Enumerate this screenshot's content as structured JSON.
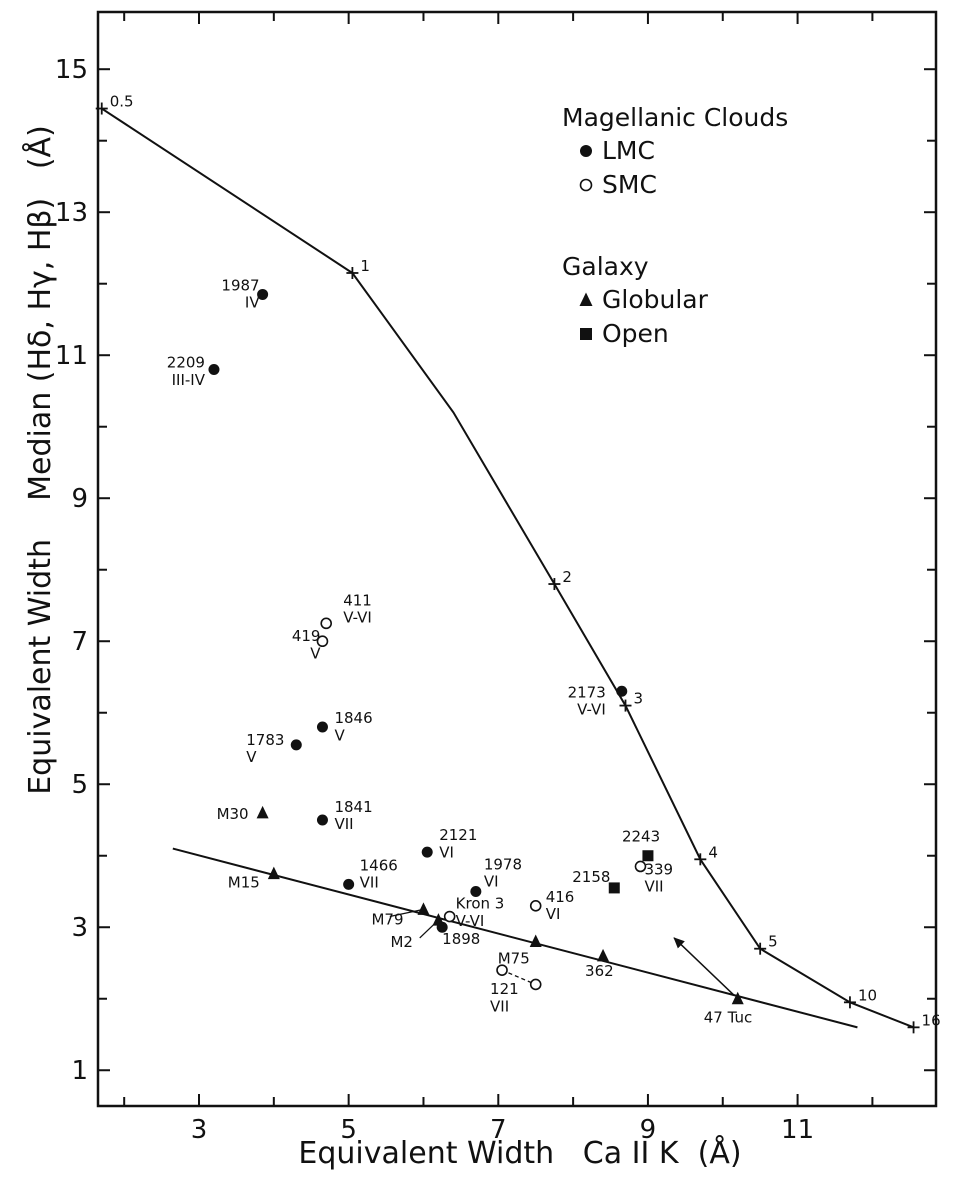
{
  "chart_data": {
    "type": "scatter",
    "xlabel": "Equivalent Width   Ca II K  (Å)",
    "ylabel": "Equivalent Width    Median (Hδ, Hγ, Hβ)   (Å)",
    "xlim": [
      1.65,
      12.85
    ],
    "ylim": [
      0.5,
      15.8
    ],
    "x_ticks": [
      3,
      5,
      7,
      9,
      11
    ],
    "y_ticks": [
      1,
      3,
      5,
      7,
      9,
      11,
      13,
      15
    ],
    "legend": {
      "groups": [
        {
          "title": "Magellanic Clouds",
          "entries": [
            {
              "marker": "filled-circle",
              "label": "LMC"
            },
            {
              "marker": "open-circle",
              "label": "SMC"
            }
          ]
        },
        {
          "title": "Galaxy",
          "entries": [
            {
              "marker": "filled-triangle",
              "label": "Globular"
            },
            {
              "marker": "filled-square",
              "label": "Open"
            }
          ]
        }
      ]
    },
    "model_curve": {
      "points": [
        {
          "x": 1.7,
          "y": 14.45,
          "label": "0.5"
        },
        {
          "x": 5.05,
          "y": 12.15,
          "label": "1"
        },
        {
          "x": 6.4,
          "y": 10.2,
          "label": ""
        },
        {
          "x": 7.75,
          "y": 7.8,
          "label": "2"
        },
        {
          "x": 8.7,
          "y": 6.1,
          "label": "3"
        },
        {
          "x": 9.7,
          "y": 3.95,
          "label": "4"
        },
        {
          "x": 10.5,
          "y": 2.7,
          "label": "5"
        },
        {
          "x": 11.7,
          "y": 1.95,
          "label": "10"
        },
        {
          "x": 12.55,
          "y": 1.6,
          "label": "16"
        }
      ]
    },
    "globular_fit_line": [
      {
        "x": 2.65,
        "y": 4.1
      },
      {
        "x": 11.8,
        "y": 1.6
      }
    ],
    "arrow": {
      "from": {
        "x": 10.15,
        "y": 2.05
      },
      "to": {
        "x": 9.35,
        "y": 2.85
      }
    },
    "series": [
      {
        "name": "LMC",
        "marker": "filled-circle",
        "points": [
          {
            "x": 3.85,
            "y": 11.85,
            "label": [
              "1987",
              "IV"
            ]
          },
          {
            "x": 3.2,
            "y": 10.8,
            "label": [
              "2209",
              "III-IV"
            ]
          },
          {
            "x": 8.65,
            "y": 6.3,
            "label": [
              "2173",
              "V-VI"
            ]
          },
          {
            "x": 4.65,
            "y": 5.8,
            "label": [
              "1846",
              "V"
            ]
          },
          {
            "x": 4.3,
            "y": 5.55,
            "label": [
              "1783",
              "V"
            ]
          },
          {
            "x": 4.65,
            "y": 4.5,
            "label": [
              "1841",
              "VII"
            ]
          },
          {
            "x": 6.05,
            "y": 4.05,
            "label": [
              "2121",
              "VI"
            ]
          },
          {
            "x": 5.0,
            "y": 3.6,
            "label": [
              "1466",
              "VII"
            ]
          },
          {
            "x": 6.7,
            "y": 3.5,
            "label": [
              "1978",
              "VI"
            ]
          },
          {
            "x": 6.25,
            "y": 3.0,
            "label": [
              "1898"
            ]
          }
        ]
      },
      {
        "name": "SMC",
        "marker": "open-circle",
        "points": [
          {
            "x": 4.7,
            "y": 7.25,
            "label": [
              "411",
              "V-VI"
            ]
          },
          {
            "x": 4.65,
            "y": 7.0,
            "label": [
              "419",
              "V"
            ]
          },
          {
            "x": 8.9,
            "y": 3.85,
            "label": [
              "339",
              "VII"
            ]
          },
          {
            "x": 7.5,
            "y": 3.3,
            "label": [
              "416",
              "VI"
            ]
          },
          {
            "x": 6.35,
            "y": 3.15,
            "label": [
              "Kron 3",
              "V-VI"
            ]
          },
          {
            "x": 7.05,
            "y": 2.4,
            "label": [
              "121",
              "VII"
            ]
          },
          {
            "x": 7.5,
            "y": 2.2,
            "label": []
          }
        ]
      },
      {
        "name": "Globular",
        "marker": "filled-triangle",
        "points": [
          {
            "x": 3.85,
            "y": 4.6,
            "label": [
              "M30"
            ]
          },
          {
            "x": 4.0,
            "y": 3.75,
            "label": [
              "M15"
            ]
          },
          {
            "x": 6.0,
            "y": 3.25,
            "label": [
              "M79"
            ]
          },
          {
            "x": 6.2,
            "y": 3.1,
            "label": [
              "M2"
            ]
          },
          {
            "x": 7.5,
            "y": 2.8,
            "label": [
              "M75"
            ]
          },
          {
            "x": 8.4,
            "y": 2.6,
            "label": [
              "362"
            ]
          },
          {
            "x": 10.2,
            "y": 2.0,
            "label": [
              "47 Tuc"
            ]
          }
        ]
      },
      {
        "name": "Open",
        "marker": "filled-square",
        "points": [
          {
            "x": 9.0,
            "y": 4.0,
            "label": [
              "2243"
            ]
          },
          {
            "x": 8.55,
            "y": 3.55,
            "label": [
              "2158"
            ]
          }
        ]
      }
    ]
  }
}
